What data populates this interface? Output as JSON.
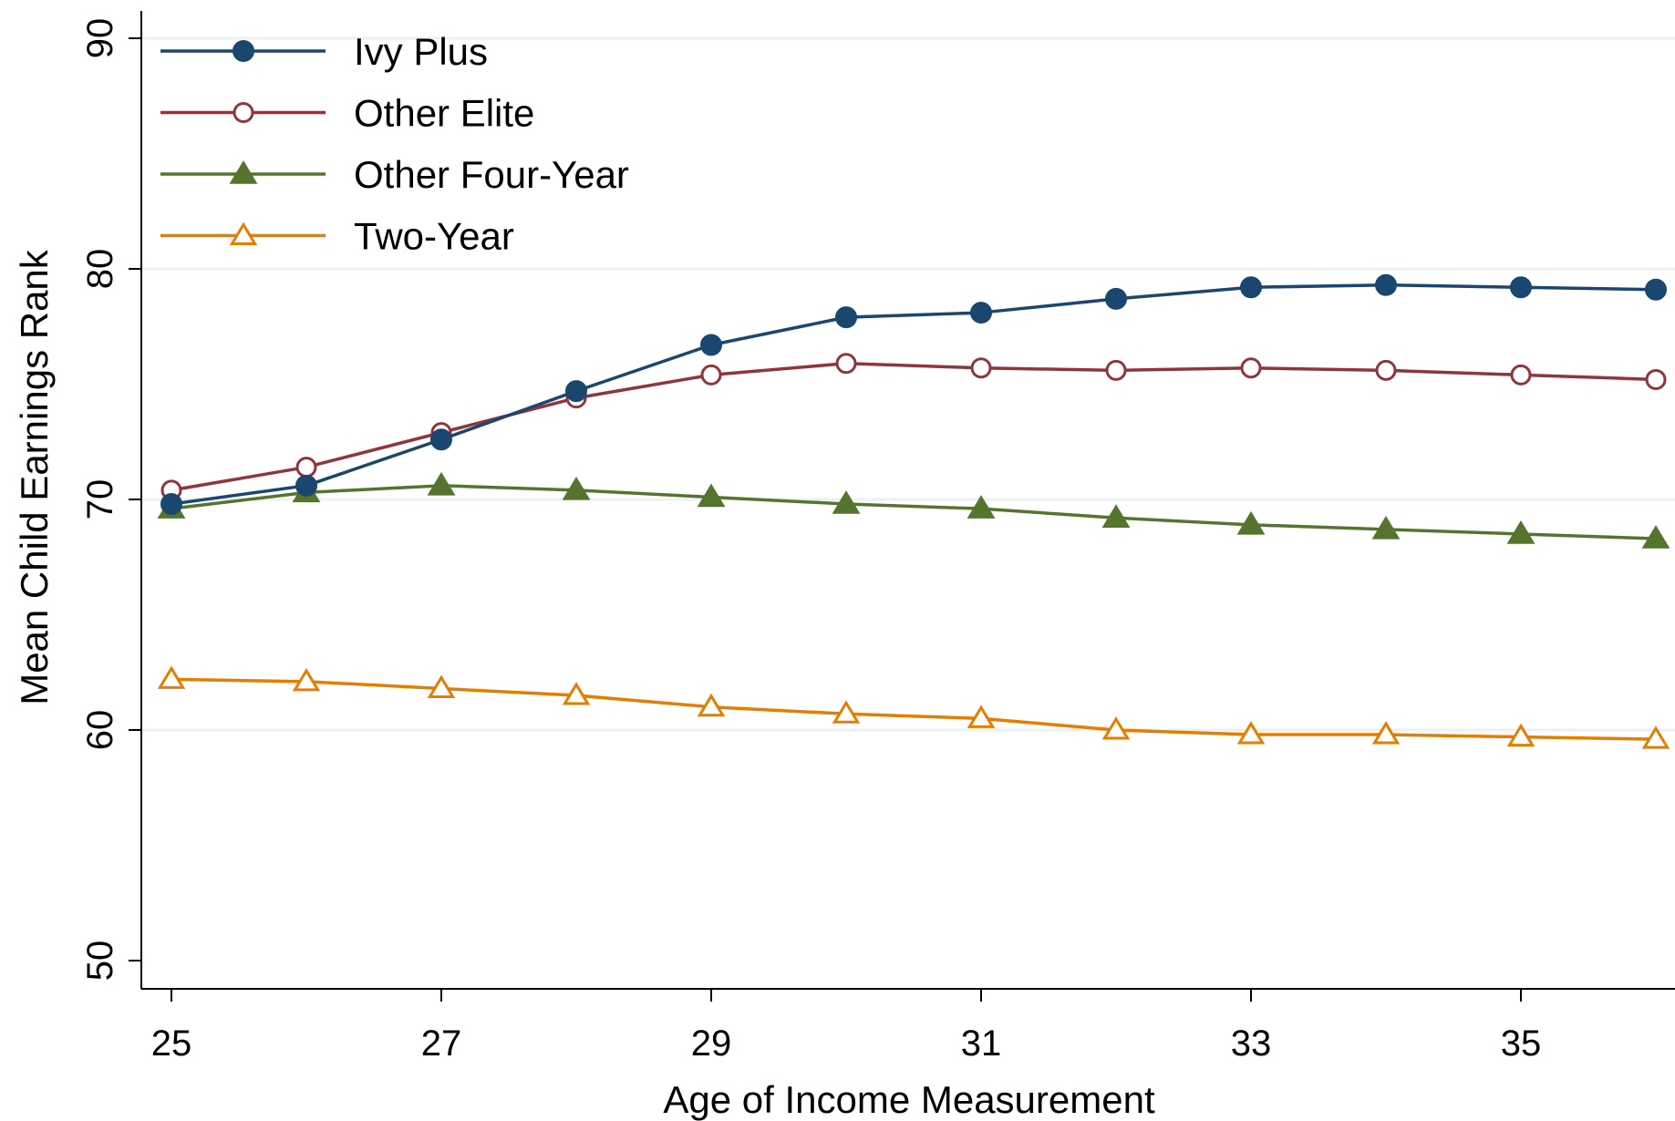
{
  "chart_data": {
    "type": "line",
    "title": "",
    "xlabel": "Age of Income Measurement",
    "ylabel": "Mean Child Earnings Rank",
    "x": [
      25,
      26,
      27,
      28,
      29,
      30,
      31,
      32,
      33,
      34,
      35,
      36
    ],
    "xlim": [
      24.78,
      36.12
    ],
    "ylim": [
      48.8,
      91.5
    ],
    "xticks": [
      25,
      27,
      29,
      31,
      33,
      35
    ],
    "yticks": [
      50,
      60,
      70,
      80,
      90
    ],
    "grid": "horizontal",
    "legend_position": "top-left",
    "series": [
      {
        "name": "Ivy Plus",
        "color": "#1a476f",
        "marker": "filled-circle",
        "values": [
          69.8,
          70.6,
          72.6,
          74.7,
          76.7,
          77.9,
          78.1,
          78.7,
          79.2,
          79.3,
          79.2,
          79.1
        ]
      },
      {
        "name": "Other Elite",
        "color": "#90353b",
        "marker": "hollow-circle",
        "values": [
          70.4,
          71.4,
          72.9,
          74.4,
          75.4,
          75.9,
          75.7,
          75.6,
          75.7,
          75.6,
          75.4,
          75.2
        ]
      },
      {
        "name": "Other Four-Year",
        "color": "#55752f",
        "marker": "filled-triangle",
        "values": [
          69.6,
          70.3,
          70.6,
          70.4,
          70.1,
          69.8,
          69.6,
          69.2,
          68.9,
          68.7,
          68.5,
          68.3
        ]
      },
      {
        "name": "Two-Year",
        "color": "#e37e00",
        "marker": "hollow-triangle",
        "values": [
          62.2,
          62.1,
          61.8,
          61.5,
          61.0,
          60.7,
          60.5,
          60.0,
          59.8,
          59.8,
          59.7,
          59.6
        ]
      }
    ]
  }
}
